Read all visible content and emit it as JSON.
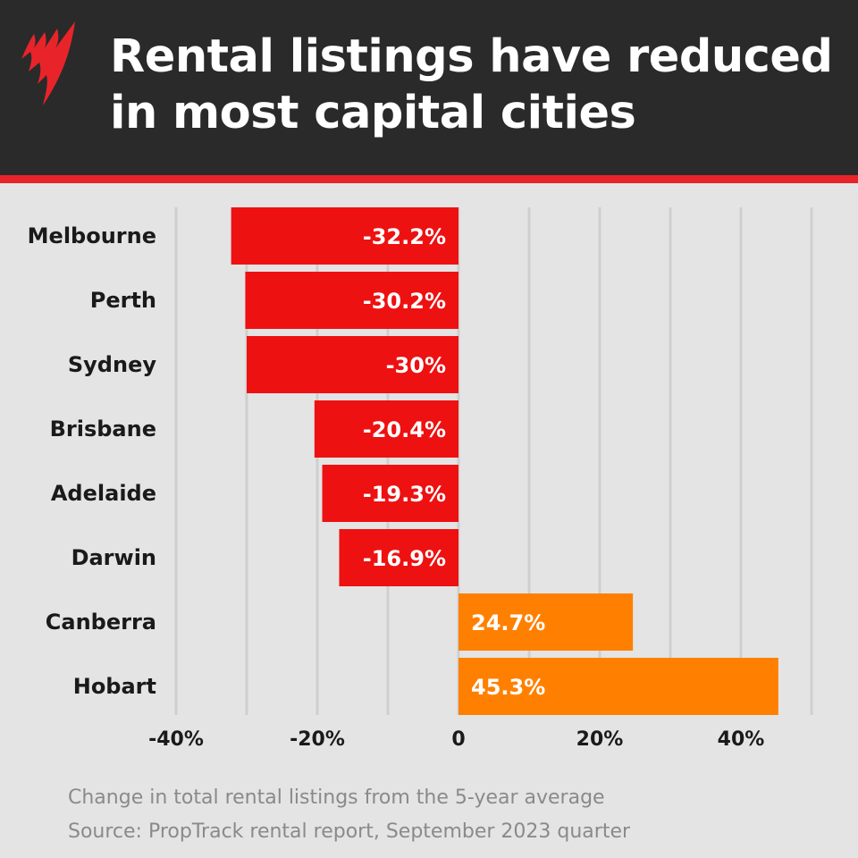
{
  "header": {
    "title_line1": "Rental listings have reduced",
    "title_line2": "in most capital cities",
    "logo": "sbs-logo",
    "accent_color": "#e8242a"
  },
  "chart_data": {
    "type": "bar",
    "orientation": "horizontal",
    "categories": [
      "Melbourne",
      "Perth",
      "Sydney",
      "Brisbane",
      "Adelaide",
      "Darwin",
      "Canberra",
      "Hobart"
    ],
    "values": [
      -32.2,
      -30.2,
      -30,
      -20.4,
      -19.3,
      -16.9,
      24.7,
      45.3
    ],
    "data_labels": [
      "-32.2%",
      "-30.2%",
      "-30%",
      "-20.4%",
      "-19.3%",
      "-16.9%",
      "24.7%",
      "45.3%"
    ],
    "colors": {
      "negative": "#ee1111",
      "positive": "#ff8000"
    },
    "xlim": [
      -40,
      50
    ],
    "x_ticks": [
      "-40%",
      "-20%",
      "0",
      "20%",
      "40%"
    ],
    "x_tick_values": [
      -40,
      -20,
      0,
      20,
      40
    ],
    "grid": "vertical, every 10%",
    "title": "Rental listings have reduced in most capital cities"
  },
  "footer": {
    "note": "Change in total rental listings from the 5-year average",
    "source": "Source: PropTrack rental report, September 2023 quarter"
  }
}
